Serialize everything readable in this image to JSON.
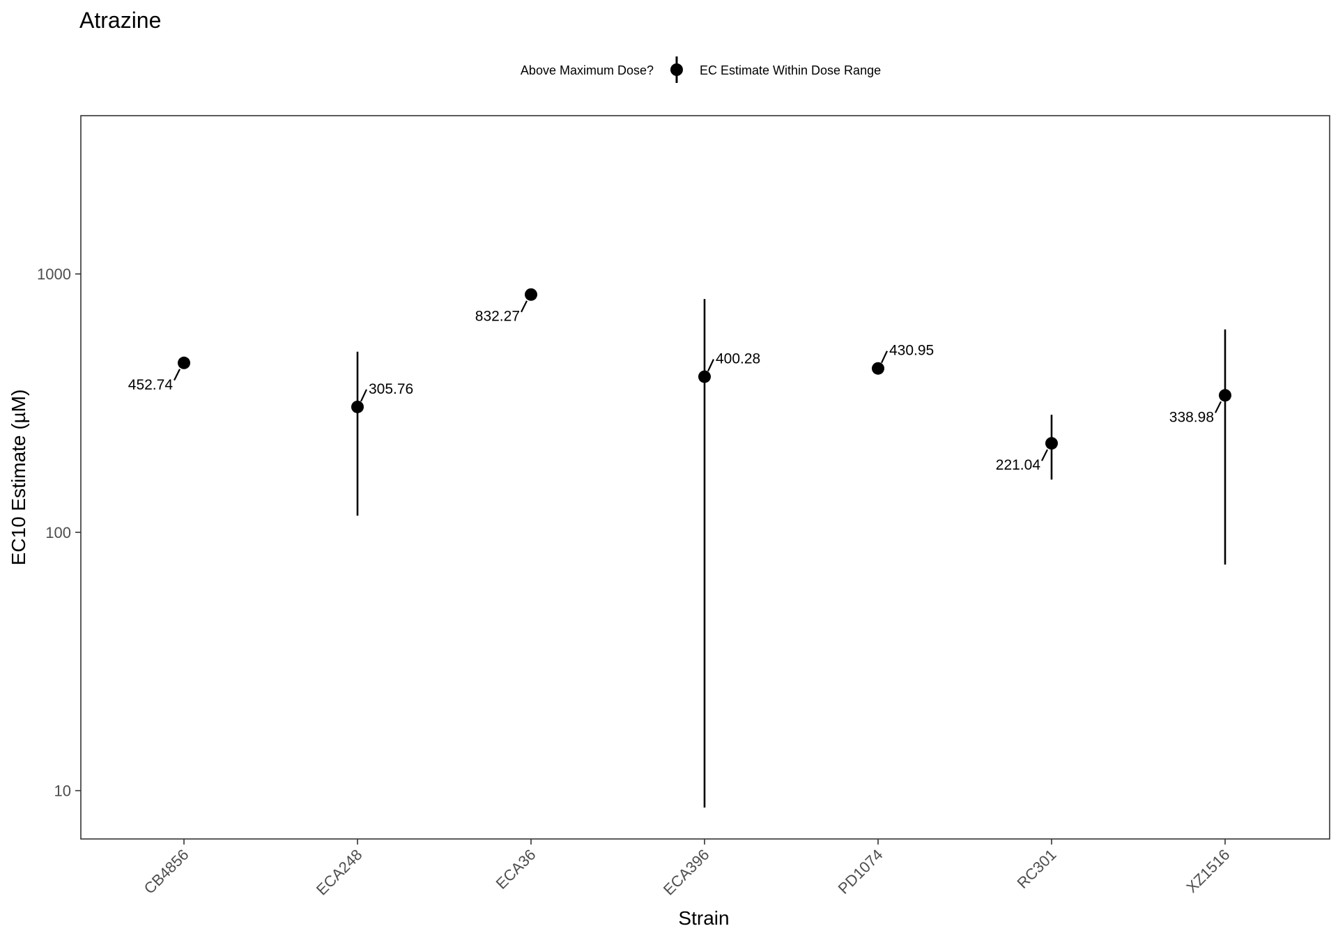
{
  "chart_data": {
    "type": "scatter",
    "title": "Atrazine",
    "xlabel": "Strain",
    "ylabel": "EC10 Estimate (µM)",
    "y_scale": "log10",
    "ylim": [
      6.5,
      4100
    ],
    "y_ticks": [
      10,
      100,
      1000
    ],
    "y_tick_labels": [
      "10",
      "100",
      "1000"
    ],
    "grid": false,
    "legend": {
      "title": "Above Maximum Dose?",
      "position": "top-center",
      "entries": [
        {
          "label": "EC Estimate Within Dose Range",
          "marker": "point-with-errorbar"
        }
      ]
    },
    "categories": [
      "CB4856",
      "ECA248",
      "ECA36",
      "ECA396",
      "PD1074",
      "RC301",
      "XZ1516"
    ],
    "series": [
      {
        "points": [
          {
            "strain": "CB4856",
            "estimate": 452.74,
            "lower": null,
            "upper": null,
            "label": "452.74",
            "label_side": "left"
          },
          {
            "strain": "ECA248",
            "estimate": 305.76,
            "lower": 116,
            "upper": 500,
            "label": "305.76",
            "label_side": "right"
          },
          {
            "strain": "ECA36",
            "estimate": 832.27,
            "lower": null,
            "upper": null,
            "label": "832.27",
            "label_side": "left"
          },
          {
            "strain": "ECA396",
            "estimate": 400.28,
            "lower": 8.6,
            "upper": 800,
            "label": "400.28",
            "label_side": "right"
          },
          {
            "strain": "PD1074",
            "estimate": 430.95,
            "lower": null,
            "upper": null,
            "label": "430.95",
            "label_side": "right"
          },
          {
            "strain": "RC301",
            "estimate": 221.04,
            "lower": 160,
            "upper": 285,
            "label": "221.04",
            "label_side": "left"
          },
          {
            "strain": "XZ1516",
            "estimate": 338.98,
            "lower": 75,
            "upper": 610,
            "label": "338.98",
            "label_side": "left"
          }
        ]
      }
    ],
    "colors": {
      "point": "#000000",
      "errorbar": "#000000",
      "panel_border": "#333333",
      "tick_label": "#4d4d4d"
    }
  }
}
